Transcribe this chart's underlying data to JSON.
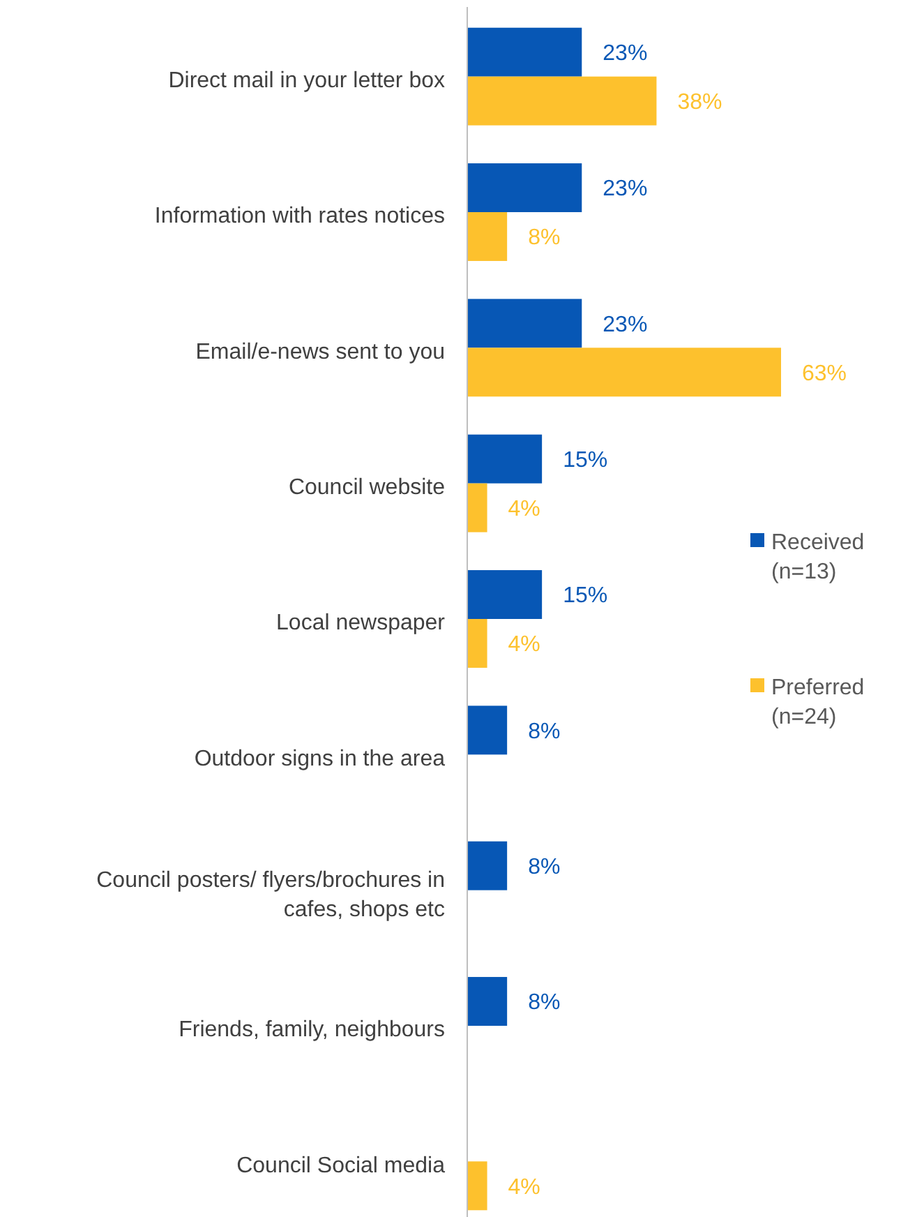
{
  "chart_data": {
    "type": "bar",
    "orientation": "horizontal",
    "categories": [
      "Direct mail in your letter box",
      "Information with rates notices",
      "Email/e-news sent to you",
      "Council website",
      "Local newspaper",
      "Outdoor signs in the area",
      "Council posters/ flyers/brochures in cafes, shops etc",
      "Friends, family, neighbours",
      "Council Social media"
    ],
    "series": [
      {
        "name": "Received (n=13)",
        "color": "#0757b5",
        "values": [
          23,
          23,
          23,
          15,
          15,
          8,
          8,
          8,
          null
        ],
        "value_labels": [
          "23%",
          "23%",
          "23%",
          "15%",
          "15%",
          "8%",
          "8%",
          "8%",
          null
        ]
      },
      {
        "name": "Preferred (n=24)",
        "color": "#fdc12d",
        "values": [
          38,
          8,
          63,
          4,
          4,
          null,
          null,
          null,
          4
        ],
        "value_labels": [
          "38%",
          "8%",
          "63%",
          "4%",
          "4%",
          null,
          null,
          null,
          "4%"
        ]
      }
    ],
    "legend": "right"
  }
}
